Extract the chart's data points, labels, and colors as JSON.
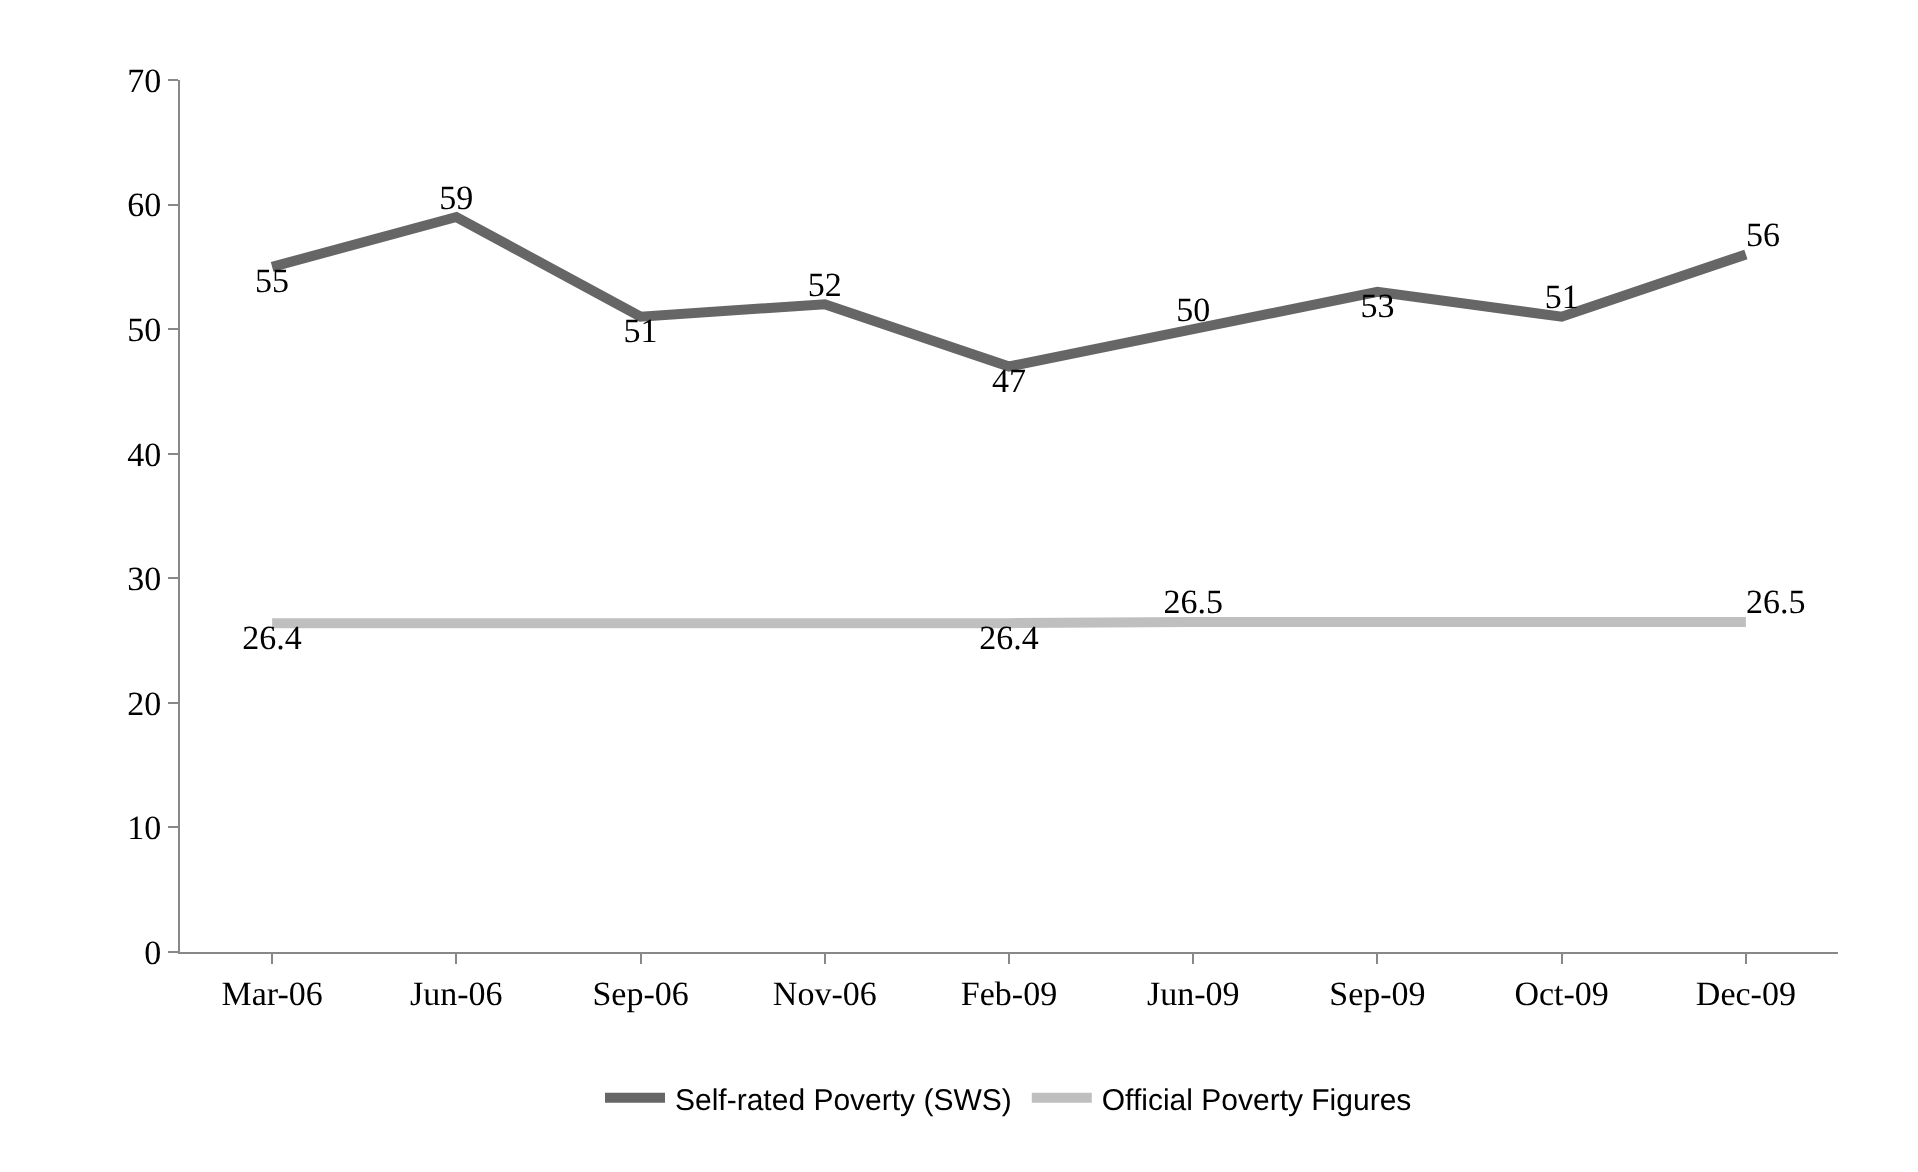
{
  "chart_data": {
    "type": "line",
    "categories": [
      "Mar-06",
      "Jun-06",
      "Sep-06",
      "Nov-06",
      "Feb-09",
      "Jun-09",
      "Sep-09",
      "Oct-09",
      "Dec-09"
    ],
    "series": [
      {
        "name": "Self-rated Poverty (SWS)",
        "color": "#666666",
        "values": [
          55,
          59,
          51,
          52,
          47,
          50,
          53,
          51,
          56
        ],
        "value_labels": [
          "55",
          "59",
          "51",
          "52",
          "47",
          "50",
          "53",
          "51",
          "56"
        ]
      },
      {
        "name": "Official Poverty Figures",
        "color": "#bfbfbf",
        "values": [
          26.4,
          26.4,
          26.4,
          26.4,
          26.4,
          26.5,
          26.5,
          26.5,
          26.5
        ],
        "value_labels": [
          "26.4",
          null,
          null,
          null,
          "26.4",
          "26.5",
          null,
          null,
          "26.5"
        ]
      }
    ],
    "ylim": [
      0,
      70
    ],
    "yticks": [
      0,
      10,
      20,
      30,
      40,
      50,
      60,
      70
    ],
    "grid": false,
    "legend": "bottom",
    "marker": "none",
    "line_style": "solid"
  }
}
